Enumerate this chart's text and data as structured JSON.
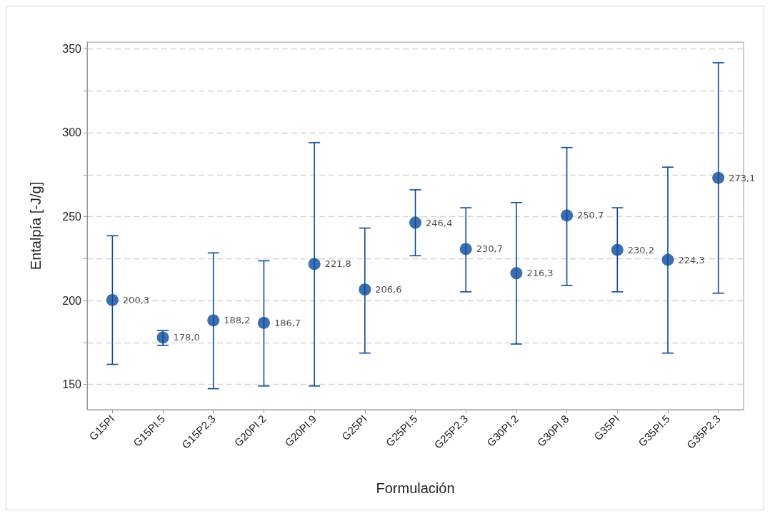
{
  "chart_data": {
    "type": "scatter",
    "xlabel": "Formulación",
    "ylabel": "Entalpía [-J/g]",
    "categories": [
      "G15PI",
      "G15PI.5",
      "G15P2.3",
      "G20PI.2",
      "G20PI.9",
      "G25PI",
      "G25PI.5",
      "G25P2.3",
      "G30PI.2",
      "G30PI.8",
      "G35PI",
      "G35PI.5",
      "G35P2.3"
    ],
    "series": [
      {
        "color": "#0d4a9c",
        "values": [
          200.3,
          178.0,
          188.2,
          186.7,
          221.8,
          206.6,
          246.4,
          230.7,
          216.3,
          250.7,
          230.2,
          224.3,
          273.1
        ],
        "value_labels": [
          "200,3",
          "178,0",
          "188,2",
          "186,7",
          "221,8",
          "206,6",
          "246,4",
          "230,7",
          "216,3",
          "250,7",
          "230,2",
          "224,3",
          "273,1"
        ],
        "errors": [
          [
            162.0,
            238.6
          ],
          [
            173.3,
            182.1
          ],
          [
            147.5,
            228.4
          ],
          [
            149.1,
            223.7
          ],
          [
            149.1,
            294.1
          ],
          [
            168.7,
            243.2
          ],
          [
            226.7,
            266.0
          ],
          [
            205.2,
            255.3
          ],
          [
            174.1,
            258.4
          ],
          [
            208.9,
            291.2
          ],
          [
            205.2,
            255.3
          ],
          [
            168.7,
            279.5
          ],
          [
            204.4,
            341.7
          ]
        ]
      }
    ],
    "ylim": [
      135,
      354
    ],
    "yticks": [
      150,
      {
        "value": 175,
        "label": null
      },
      200,
      {
        "value": 225,
        "label": null
      },
      250,
      {
        "value": 275,
        "label": null
      },
      300,
      {
        "value": 325,
        "label": null
      },
      350
    ],
    "grid": "y",
    "marker": "circle"
  }
}
